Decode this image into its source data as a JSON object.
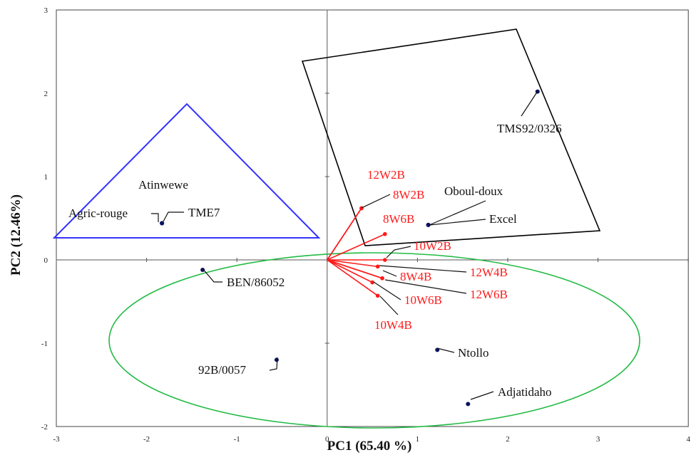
{
  "chart_data": {
    "type": "scatter",
    "title": "",
    "xlabel": "PC1 (65.40 %)",
    "ylabel": "PC2 (12.46%)",
    "xlim": [
      -3,
      4
    ],
    "ylim": [
      -2,
      3
    ],
    "xticks": [
      -3,
      -2,
      -1,
      0,
      1,
      2,
      3,
      4
    ],
    "yticks": [
      -2,
      -1,
      0,
      1,
      2,
      3
    ],
    "grid": false,
    "colors": {
      "genotype": "#0b1460",
      "variable": "#ff1a1a",
      "triangle": "#3333ff",
      "quadrilateral": "#000000",
      "ellipse": "#22bb44"
    },
    "genotypes": [
      {
        "name": "TMS92/0326",
        "x": 2.33,
        "y": 2.02
      },
      {
        "name": "Oboul-doux",
        "x": 1.12,
        "y": 0.42
      },
      {
        "name": "Excel",
        "x": 1.12,
        "y": 0.42
      },
      {
        "name": "Atinwewe",
        "x": -1.83,
        "y": 0.44
      },
      {
        "name": "Agric-rouge",
        "x": -1.83,
        "y": 0.44
      },
      {
        "name": "TME7",
        "x": -1.83,
        "y": 0.44
      },
      {
        "name": "BEN/86052",
        "x": -1.38,
        "y": -0.12
      },
      {
        "name": "92B/0057",
        "x": -0.56,
        "y": -1.2
      },
      {
        "name": "Ntollo",
        "x": 1.22,
        "y": -1.08
      },
      {
        "name": "Adjatidaho",
        "x": 1.56,
        "y": -1.73
      }
    ],
    "variables": [
      {
        "name": "12W2B",
        "x": 0.38,
        "y": 0.62
      },
      {
        "name": "8W2B",
        "x": 0.38,
        "y": 0.62
      },
      {
        "name": "8W6B",
        "x": 0.64,
        "y": 0.31
      },
      {
        "name": "10W2B",
        "x": 0.64,
        "y": 0.0
      },
      {
        "name": "12W4B",
        "x": 0.56,
        "y": -0.08
      },
      {
        "name": "8W4B",
        "x": 0.61,
        "y": -0.22
      },
      {
        "name": "12W6B",
        "x": 0.61,
        "y": -0.22
      },
      {
        "name": "10W6B",
        "x": 0.5,
        "y": -0.27
      },
      {
        "name": "10W4B",
        "x": 0.56,
        "y": -0.43
      }
    ]
  }
}
